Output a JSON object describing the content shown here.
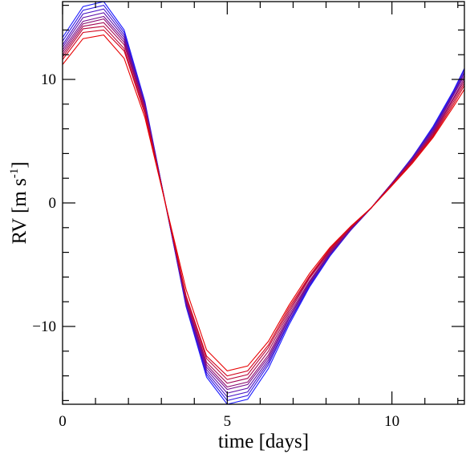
{
  "chart_data": {
    "type": "line",
    "xlabel": "time [days]",
    "ylabel_main": "RV [m s",
    "ylabel_sup": "-1",
    "ylabel_close": "]",
    "xlim": [
      0,
      12.2
    ],
    "ylim": [
      -16.3,
      16.3
    ],
    "xticks": [
      0,
      5,
      10
    ],
    "xtick_labels": [
      "0",
      "5",
      "10"
    ],
    "yticks": [
      -10,
      0,
      10
    ],
    "ytick_labels": [
      "−10",
      "0",
      "10"
    ],
    "x_minor_step": 1,
    "y_minor_step": 2,
    "grid": false,
    "legend": "none",
    "x": [
      0,
      0.62,
      1.25,
      1.87,
      2.5,
      3.12,
      3.75,
      4.37,
      5.0,
      5.62,
      6.25,
      6.87,
      7.5,
      8.12,
      8.75,
      9.37,
      10.0,
      10.62,
      11.25,
      11.87,
      12.2
    ],
    "color_blue": "#1a1aff",
    "color_red": "#e80000",
    "series": [
      {
        "values": [
          13.4,
          15.9,
          16.3,
          14.0,
          8.2,
          0.0,
          -8.4,
          -14.1,
          -16.3,
          -15.9,
          -13.4,
          -9.9,
          -6.8,
          -4.3,
          -2.2,
          -0.4,
          1.6,
          3.7,
          6.2,
          9.1,
          10.9
        ]
      },
      {
        "values": [
          13.1,
          15.6,
          16.0,
          13.8,
          8.1,
          0.0,
          -8.3,
          -13.9,
          -16.0,
          -15.6,
          -13.1,
          -9.7,
          -6.7,
          -4.2,
          -2.2,
          -0.4,
          1.6,
          3.7,
          6.1,
          9.0,
          10.8
        ]
      },
      {
        "values": [
          12.8,
          15.3,
          15.7,
          13.6,
          8.0,
          0.0,
          -8.2,
          -13.7,
          -15.7,
          -15.3,
          -12.9,
          -9.6,
          -6.6,
          -4.2,
          -2.2,
          -0.4,
          1.6,
          3.6,
          6.0,
          8.9,
          10.6
        ]
      },
      {
        "values": [
          12.6,
          15.0,
          15.4,
          13.4,
          7.9,
          0.0,
          -8.1,
          -13.5,
          -15.4,
          -15.0,
          -12.7,
          -9.4,
          -6.5,
          -4.1,
          -2.1,
          -0.4,
          1.6,
          3.6,
          5.9,
          8.8,
          10.5
        ]
      },
      {
        "values": [
          12.4,
          14.7,
          15.1,
          13.2,
          7.8,
          0.0,
          -8.0,
          -13.3,
          -15.1,
          -14.7,
          -12.5,
          -9.3,
          -6.4,
          -4.1,
          -2.1,
          -0.4,
          1.6,
          3.5,
          5.8,
          8.7,
          10.3
        ]
      },
      {
        "values": [
          12.2,
          14.5,
          14.9,
          13.0,
          7.7,
          0.0,
          -7.9,
          -13.1,
          -14.9,
          -14.5,
          -12.3,
          -9.1,
          -6.3,
          -4.0,
          -2.1,
          -0.4,
          1.5,
          3.5,
          5.7,
          8.5,
          10.1
        ]
      },
      {
        "values": [
          12.0,
          14.3,
          14.6,
          12.8,
          7.6,
          0.0,
          -7.8,
          -12.9,
          -14.6,
          -14.2,
          -12.0,
          -8.9,
          -6.1,
          -3.9,
          -2.0,
          -0.4,
          1.5,
          3.4,
          5.6,
          8.4,
          9.9
        ]
      },
      {
        "values": [
          11.8,
          14.1,
          14.3,
          12.5,
          7.4,
          0.0,
          -7.6,
          -12.6,
          -14.3,
          -13.9,
          -11.7,
          -8.7,
          -6.0,
          -3.8,
          -2.0,
          -0.4,
          1.5,
          3.4,
          5.5,
          8.2,
          9.7
        ]
      },
      {
        "values": [
          11.6,
          13.8,
          14.0,
          12.3,
          7.2,
          0.0,
          -7.5,
          -12.4,
          -14.0,
          -13.6,
          -11.5,
          -8.5,
          -5.9,
          -3.7,
          -1.9,
          -0.4,
          1.4,
          3.3,
          5.4,
          8.0,
          9.5
        ]
      },
      {
        "values": [
          11.2,
          13.3,
          13.6,
          11.7,
          6.9,
          0.0,
          -7.0,
          -11.9,
          -13.6,
          -13.2,
          -11.2,
          -8.3,
          -5.7,
          -3.6,
          -1.9,
          -0.4,
          1.4,
          3.2,
          5.3,
          7.8,
          9.2
        ]
      }
    ]
  }
}
